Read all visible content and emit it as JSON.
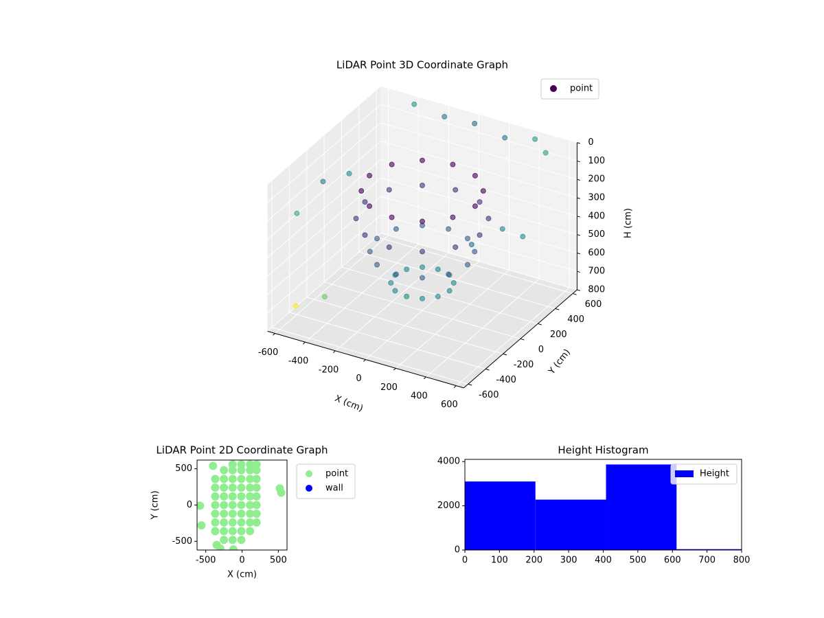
{
  "chart_data": [
    {
      "type": "scatter3d",
      "title": "LiDAR Point 3D Coordinate Graph",
      "xlabel": "X (cm)",
      "ylabel": "Y (cm)",
      "zlabel": "H (cm)",
      "xlim": [
        -650,
        650
      ],
      "ylim": [
        -650,
        650
      ],
      "zlim": [
        800,
        0
      ],
      "xticks": [
        -600,
        -400,
        -200,
        0,
        200,
        400,
        600
      ],
      "yticks": [
        -600,
        -400,
        -200,
        0,
        200,
        400,
        600
      ],
      "zticks": [
        0,
        100,
        200,
        300,
        400,
        500,
        600,
        700,
        800
      ],
      "colormap": "viridis",
      "grid": true,
      "legend": "upper right",
      "series": [
        {
          "name": "point",
          "x": [
            350,
            303,
            175,
            0,
            -175,
            -303,
            -350,
            -303,
            -175,
            0,
            175,
            303,
            380,
            329,
            190,
            0,
            -190,
            -329,
            -380,
            -329,
            -190,
            0,
            190,
            329,
            300,
            260,
            150,
            0,
            -150,
            -260,
            -300,
            -260,
            -150,
            0,
            150,
            260,
            180,
            156,
            90,
            0,
            -90,
            -156,
            -180,
            -156,
            -90,
            0,
            90,
            156,
            -400,
            -200,
            0,
            200,
            400,
            500,
            -600,
            -600,
            -600,
            -550,
            -300,
            500,
            550,
            300
          ],
          "y": [
            0,
            175,
            303,
            350,
            303,
            175,
            0,
            -175,
            -303,
            -350,
            -303,
            -175,
            0,
            190,
            329,
            380,
            329,
            190,
            0,
            -190,
            -329,
            -380,
            -329,
            -190,
            0,
            150,
            260,
            300,
            260,
            150,
            0,
            -150,
            -260,
            -300,
            -260,
            -150,
            0,
            90,
            156,
            180,
            156,
            90,
            0,
            -90,
            -156,
            -180,
            -156,
            -90,
            600,
            600,
            600,
            600,
            600,
            550,
            -400,
            -100,
            200,
            -500,
            -600,
            -300,
            200,
            400
          ],
          "z": [
            150,
            150,
            150,
            150,
            150,
            150,
            150,
            150,
            150,
            150,
            150,
            150,
            300,
            300,
            300,
            300,
            300,
            300,
            300,
            300,
            300,
            300,
            300,
            300,
            480,
            480,
            480,
            480,
            480,
            480,
            480,
            480,
            480,
            480,
            480,
            480,
            650,
            650,
            650,
            650,
            650,
            650,
            650,
            650,
            650,
            650,
            650,
            650,
            20,
            40,
            30,
            60,
            20,
            50,
            250,
            200,
            280,
            700,
            550,
            200,
            350,
            450
          ]
        }
      ]
    },
    {
      "type": "scatter",
      "title": "LiDAR Point 2D Coordinate Graph",
      "xlabel": "X (cm)",
      "ylabel": "Y (cm)",
      "xlim": [
        -620,
        620
      ],
      "ylim": [
        -620,
        620
      ],
      "xticks": [
        -500,
        0,
        500
      ],
      "yticks": [
        -500,
        0,
        500
      ],
      "legend": "outside right",
      "series": [
        {
          "name": "point",
          "color": "#90ee90",
          "x": [
            -250,
            -130,
            -10,
            -370,
            -250,
            -130,
            -10,
            110,
            -370,
            -250,
            -130,
            -10,
            110,
            200,
            -370,
            -250,
            -130,
            -10,
            110,
            200,
            -370,
            -250,
            -130,
            -10,
            110,
            200,
            -370,
            -250,
            -130,
            -10,
            110,
            200,
            -370,
            -250,
            -130,
            -10,
            110,
            200,
            -370,
            -250,
            -130,
            -10,
            110,
            200,
            -250,
            -130,
            -10,
            110,
            200,
            -130,
            -10,
            110,
            200,
            -580,
            -560,
            520,
            540,
            -350,
            -300,
            -120,
            -400
          ],
          "y": [
            -480,
            -480,
            -480,
            -360,
            -360,
            -360,
            -360,
            -360,
            -240,
            -240,
            -240,
            -240,
            -240,
            -240,
            -120,
            -120,
            -120,
            -120,
            -120,
            -120,
            0,
            0,
            0,
            0,
            0,
            0,
            120,
            120,
            120,
            120,
            120,
            120,
            240,
            240,
            240,
            240,
            240,
            240,
            360,
            360,
            360,
            360,
            360,
            360,
            480,
            480,
            480,
            480,
            480,
            560,
            560,
            560,
            560,
            -10,
            -280,
            230,
            170,
            -550,
            -600,
            -610,
            540
          ]
        },
        {
          "name": "wall",
          "color": "#0000ff",
          "x": [],
          "y": []
        }
      ]
    },
    {
      "type": "histogram",
      "title": "Height Histogram",
      "xlim": [
        0,
        800
      ],
      "ylim": [
        0,
        4100
      ],
      "xticks": [
        0,
        100,
        200,
        300,
        400,
        500,
        600,
        700,
        800
      ],
      "yticks": [
        0,
        2000,
        4000
      ],
      "legend": "upper right",
      "series": [
        {
          "name": "Height",
          "color": "#0000ff",
          "bins": [
            0,
            204,
            408,
            612,
            816
          ],
          "values": [
            3100,
            2280,
            3870,
            40
          ]
        }
      ]
    }
  ]
}
